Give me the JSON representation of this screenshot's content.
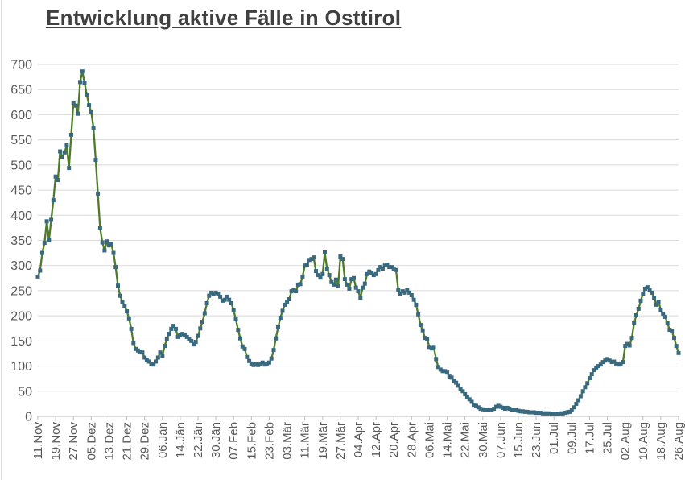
{
  "header": {
    "title": "Entwicklung aktive Fälle in Osttirol"
  },
  "chart_data": {
    "type": "line",
    "title": "Entwicklung aktive Fälle in Osttirol",
    "xlabel": "",
    "ylabel": "",
    "legend": "none",
    "grid": "horizontal",
    "ylim": [
      0,
      700
    ],
    "y_tick_step": 50,
    "y_tick_labels": [
      "0",
      "50",
      "100",
      "150",
      "200",
      "250",
      "300",
      "350",
      "400",
      "450",
      "500",
      "550",
      "600",
      "650",
      "700"
    ],
    "x_tick_interval_days": 8,
    "x_tick_labels": [
      "11.Nov",
      "19.Nov",
      "27.Nov",
      "05.Dez",
      "13.Dez",
      "21.Dez",
      "29.Dez",
      "06.Jän",
      "14.Jän",
      "22.Jän",
      "30.Jän",
      "07.Feb",
      "15.Feb",
      "23.Feb",
      "03.Mär",
      "11.Mär",
      "19.Mär",
      "27.Mär",
      "04.Apr",
      "12.Apr",
      "20.Apr",
      "28.Apr",
      "06.Mai",
      "14.Mai",
      "22.Mai",
      "30.Mai",
      "07.Jun",
      "15.Jun",
      "23.Jun",
      "01.Jul",
      "09.Jul",
      "17.Jul",
      "25.Jul",
      "02.Aug",
      "10.Aug",
      "18.Aug",
      "26.Aug"
    ],
    "values": [
      278,
      290,
      325,
      345,
      388,
      350,
      391,
      430,
      477,
      470,
      527,
      515,
      525,
      539,
      494,
      560,
      624,
      618,
      602,
      665,
      686,
      664,
      640,
      619,
      606,
      574,
      510,
      443,
      374,
      346,
      330,
      348,
      340,
      343,
      325,
      297,
      260,
      240,
      228,
      220,
      209,
      195,
      174,
      146,
      134,
      131,
      129,
      127,
      117,
      113,
      109,
      104,
      103,
      109,
      117,
      127,
      121,
      140,
      153,
      164,
      174,
      180,
      174,
      158,
      161,
      164,
      161,
      158,
      153,
      150,
      143,
      148,
      160,
      175,
      188,
      205,
      225,
      240,
      246,
      243,
      246,
      243,
      238,
      230,
      232,
      238,
      232,
      225,
      211,
      193,
      172,
      155,
      139,
      134,
      118,
      110,
      105,
      102,
      104,
      102,
      105,
      107,
      103,
      105,
      107,
      115,
      132,
      155,
      177,
      196,
      210,
      222,
      228,
      233,
      249,
      252,
      249,
      262,
      263,
      278,
      300,
      302,
      311,
      313,
      316,
      289,
      281,
      276,
      283,
      326,
      294,
      281,
      267,
      262,
      272,
      259,
      318,
      313,
      273,
      262,
      254,
      273,
      275,
      256,
      249,
      236,
      256,
      264,
      283,
      288,
      286,
      281,
      283,
      291,
      297,
      294,
      300,
      302,
      297,
      297,
      294,
      291,
      251,
      244,
      249,
      246,
      251,
      246,
      241,
      232,
      222,
      203,
      182,
      171,
      156,
      154,
      138,
      135,
      138,
      114,
      98,
      93,
      90,
      90,
      87,
      79,
      77,
      71,
      67,
      61,
      55,
      50,
      44,
      39,
      34,
      29,
      23,
      21,
      18,
      15,
      14,
      13,
      13,
      12,
      13,
      15,
      19,
      21,
      19,
      17,
      15,
      17,
      15,
      13,
      13,
      12,
      11,
      10,
      10,
      9,
      9,
      8,
      8,
      8,
      7,
      7,
      7,
      6,
      6,
      6,
      6,
      5,
      5,
      5,
      5,
      6,
      6,
      7,
      8,
      9,
      12,
      18,
      25,
      32,
      40,
      50,
      58,
      66,
      76,
      84,
      92,
      97,
      100,
      103,
      108,
      111,
      114,
      111,
      108,
      109,
      105,
      103,
      105,
      108,
      140,
      144,
      141,
      156,
      185,
      201,
      214,
      230,
      244,
      254,
      257,
      251,
      246,
      236,
      222,
      228,
      212,
      204,
      198,
      185,
      172,
      169,
      156,
      140,
      126
    ],
    "colors": {
      "line": "#4f7b28",
      "marker": "#38697f",
      "grid": "#d9d9d9",
      "axis": "#bfbfbf",
      "tick_text": "#595959",
      "title_text": "#404040"
    }
  }
}
